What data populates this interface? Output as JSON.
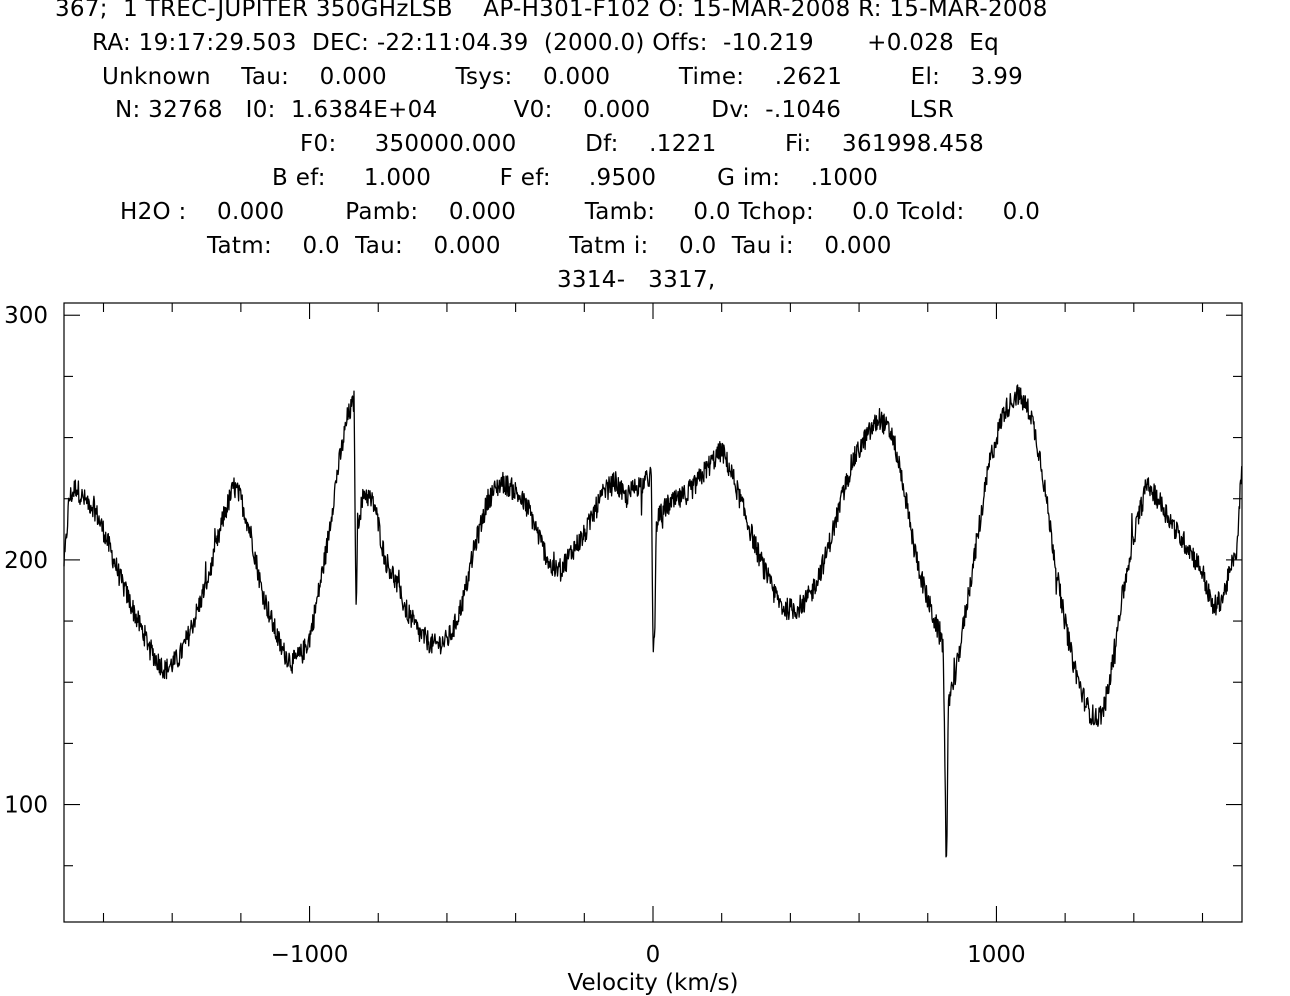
{
  "header": {
    "line1": "367;  1 TREC-JUPITER 350GHzLSB    AP-H301-F102 O: 15-MAR-2008 R: 15-MAR-2008",
    "line2": "RA: 19:17:29.503  DEC: -22:11:04.39  (2000.0) Offs:  -10.219       +0.028  Eq",
    "line3": "Unknown    Tau:    0.000         Tsys:    0.000         Time:    .2621         El:    3.99",
    "line4": "N: 32768   I0:  1.6384E+04          V0:    0.000        Dv:  -.1046         LSR",
    "line5": "F0:     350000.000         Df:    .1221         Fi:    361998.458",
    "line6": "B ef:     1.000         F ef:     .9500        G im:    .1000",
    "line7": "H2O :    0.000        Pamb:    0.000         Tamb:     0.0 Tchop:     0.0 Tcold:     0.0",
    "line8": "Tatm:    0.0  Tau:    0.000         Tatm i:    0.0  Tau i:    0.000",
    "line9": "3314-   3317,"
  },
  "chart_data": {
    "type": "line",
    "title": "",
    "xlabel": "Velocity (km/s)",
    "ylabel": "",
    "xlim": [
      -1715,
      1715
    ],
    "ylim": [
      52,
      305
    ],
    "x_ticks": [
      -1000,
      0,
      1000
    ],
    "x_tick_labels": [
      "−1000",
      "0",
      "1000"
    ],
    "y_ticks": [
      100,
      200,
      300
    ],
    "y_tick_labels": [
      "100",
      "200",
      "300"
    ],
    "grid": false,
    "legend": "none",
    "line_color": "#000000",
    "series": [
      {
        "x": [
          -1715,
          -1700,
          -1680,
          -1660,
          -1630,
          -1600,
          -1550,
          -1500,
          -1450,
          -1420,
          -1380,
          -1350,
          -1320,
          -1280,
          -1250,
          -1220,
          -1200,
          -1170,
          -1140,
          -1110,
          -1080,
          -1050,
          -1020,
          -1000,
          -980,
          -950,
          -920,
          -890,
          -870,
          -865,
          -860,
          -840,
          -810,
          -780,
          -760,
          -720,
          -680,
          -640,
          -600,
          -580,
          -550,
          -520,
          -480,
          -440,
          -400,
          -360,
          -320,
          -290,
          -260,
          -230,
          -200,
          -170,
          -140,
          -110,
          -80,
          -50,
          -20,
          -5,
          0,
          5,
          10,
          20,
          40,
          80,
          120,
          160,
          200,
          230,
          260,
          300,
          340,
          380,
          420,
          460,
          500,
          540,
          580,
          620,
          660,
          700,
          730,
          760,
          790,
          820,
          845,
          855,
          860,
          870,
          880,
          900,
          940,
          980,
          1020,
          1060,
          1100,
          1130,
          1160,
          1190,
          1220,
          1250,
          1270,
          1290,
          1310,
          1330,
          1360,
          1400,
          1440,
          1470,
          1500,
          1530,
          1560,
          1600,
          1630,
          1660,
          1680,
          1700,
          1715
        ],
        "y": [
          196,
          225,
          230,
          225,
          222,
          212,
          192,
          175,
          160,
          155,
          160,
          170,
          182,
          200,
          218,
          230,
          225,
          210,
          188,
          175,
          163,
          158,
          162,
          168,
          182,
          205,
          235,
          258,
          265,
          175,
          215,
          228,
          222,
          200,
          195,
          180,
          170,
          165,
          167,
          172,
          185,
          205,
          225,
          232,
          228,
          220,
          205,
          195,
          198,
          205,
          210,
          220,
          228,
          232,
          225,
          230,
          232,
          235,
          162,
          170,
          215,
          218,
          222,
          225,
          230,
          238,
          245,
          235,
          222,
          205,
          190,
          180,
          180,
          186,
          200,
          220,
          240,
          250,
          258,
          250,
          230,
          205,
          188,
          175,
          165,
          70,
          140,
          150,
          152,
          170,
          205,
          240,
          260,
          268,
          260,
          240,
          210,
          182,
          160,
          145,
          138,
          135,
          138,
          150,
          180,
          210,
          232,
          225,
          218,
          210,
          205,
          195,
          180,
          185,
          195,
          205,
          240
        ]
      }
    ]
  }
}
